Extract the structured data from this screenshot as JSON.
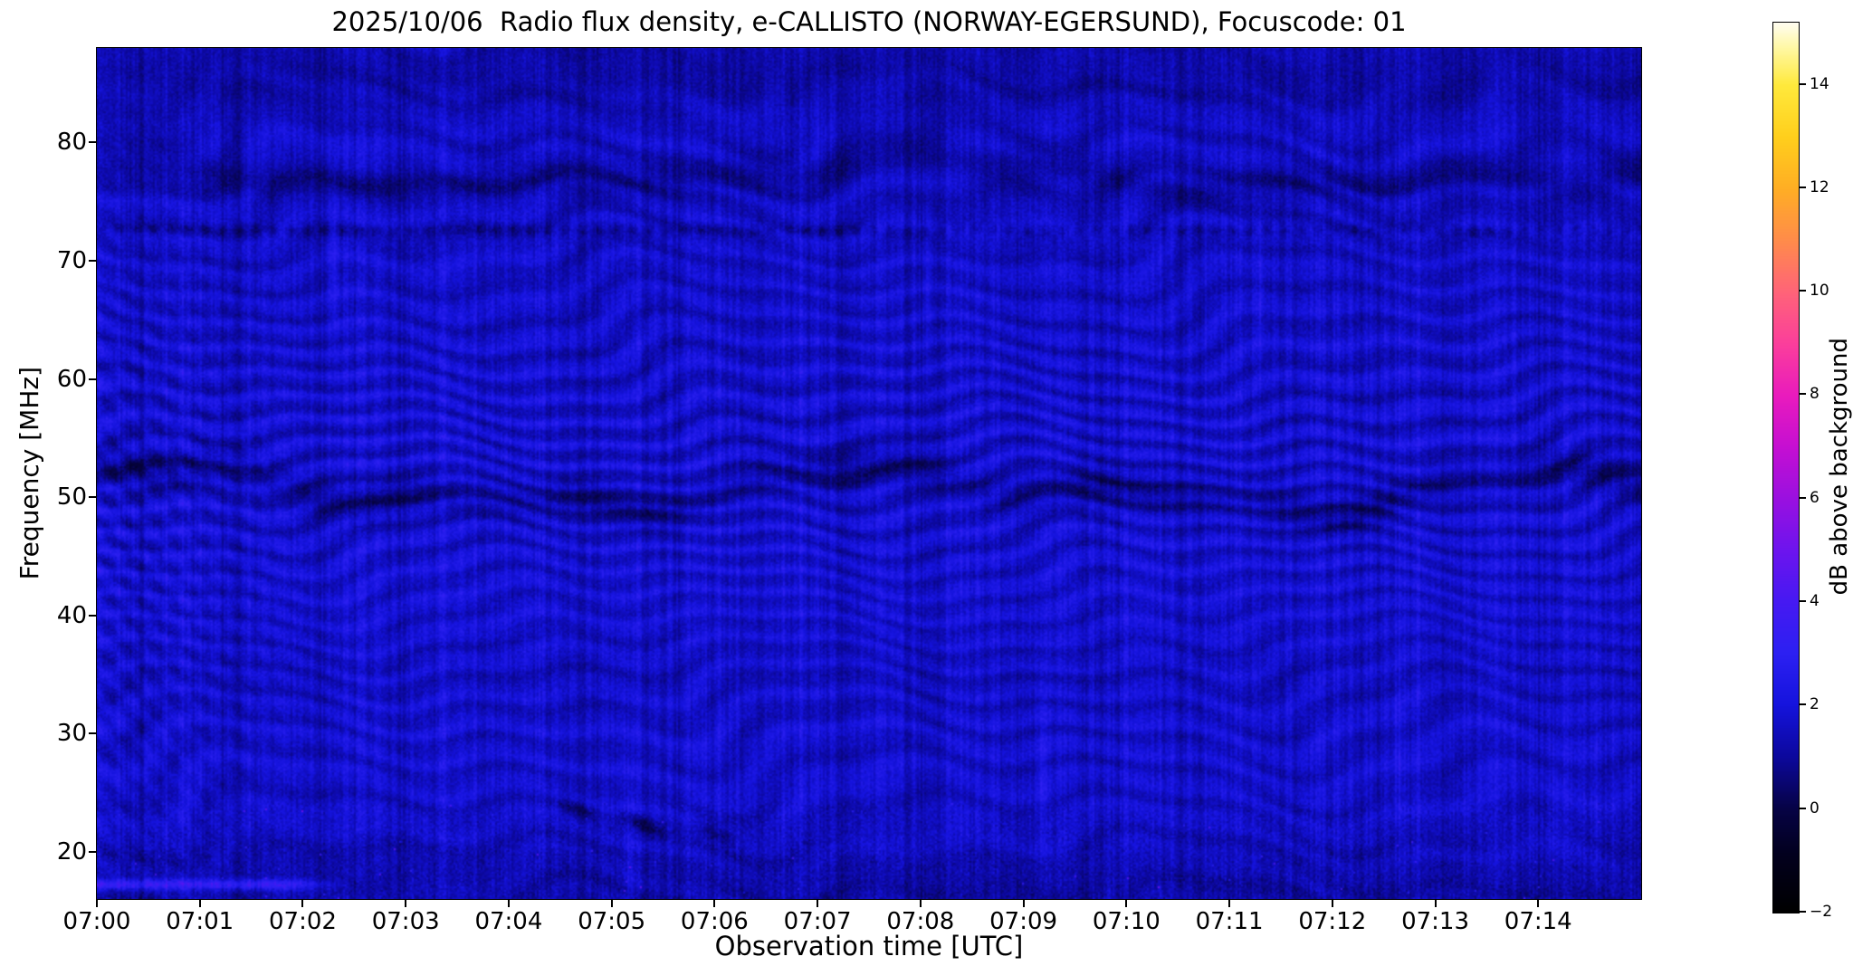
{
  "page": {
    "background_color": "#ffffff",
    "text_color": "#000000",
    "frame_color": "#000000"
  },
  "chart_data": {
    "type": "heatmap",
    "title": "2025/10/06  Radio flux density, e-CALLISTO (NORWAY-EGERSUND), Focuscode: 01",
    "xlabel": "Observation time [UTC]",
    "ylabel": "Frequency [MHz]",
    "x_tick_labels": [
      "07:00",
      "07:01",
      "07:02",
      "07:03",
      "07:04",
      "07:05",
      "07:06",
      "07:07",
      "07:08",
      "07:09",
      "07:10",
      "07:11",
      "07:12",
      "07:13",
      "07:14"
    ],
    "x_tick_minutes": [
      0,
      1,
      2,
      3,
      4,
      5,
      6,
      7,
      8,
      9,
      10,
      11,
      12,
      13,
      14
    ],
    "xlim_minutes": [
      0,
      15
    ],
    "y_ticks_mhz": [
      80,
      70,
      60,
      50,
      40,
      30,
      20
    ],
    "ylim_mhz": [
      16,
      88
    ],
    "grid": false,
    "legend": "none",
    "colorbar": {
      "label": "dB above background",
      "tick_values": [
        14,
        12,
        10,
        8,
        6,
        4,
        2,
        0,
        -2
      ],
      "value_range": [
        -2,
        15.2
      ],
      "colormap_stops": [
        {
          "pos": 0.0,
          "color": "#000000"
        },
        {
          "pos": 0.065,
          "color": "#02001e"
        },
        {
          "pos": 0.116,
          "color": "#060345"
        },
        {
          "pos": 0.175,
          "color": "#0c089d"
        },
        {
          "pos": 0.233,
          "color": "#1513dd"
        },
        {
          "pos": 0.291,
          "color": "#2c20f2"
        },
        {
          "pos": 0.349,
          "color": "#4619f2"
        },
        {
          "pos": 0.407,
          "color": "#6d14ee"
        },
        {
          "pos": 0.465,
          "color": "#9a10e0"
        },
        {
          "pos": 0.523,
          "color": "#c50fd2"
        },
        {
          "pos": 0.581,
          "color": "#e91bbd"
        },
        {
          "pos": 0.64,
          "color": "#fb3f9b"
        },
        {
          "pos": 0.698,
          "color": "#ff6478"
        },
        {
          "pos": 0.756,
          "color": "#ff8c4a"
        },
        {
          "pos": 0.814,
          "color": "#ffae24"
        },
        {
          "pos": 0.872,
          "color": "#ffcf1c"
        },
        {
          "pos": 0.93,
          "color": "#ffe93c"
        },
        {
          "pos": 0.97,
          "color": "#fff79f"
        },
        {
          "pos": 1.0,
          "color": "#fffdf0"
        }
      ]
    },
    "visual_features": [
      "background noise floor around 0 to 2 dB rendered as dark blue",
      "wavy horizontal interference fringes, strongest between about 40 and 60 MHz",
      "dark undulating band near 50 MHz and another near 77 MHz",
      "dotted dark horizontal line near 72.5 MHz",
      "diagonal fringe pattern during roughly the first two minutes (07:00-07:02)",
      "bright narrow emission line near 17 MHz from 07:00 to about 07:02",
      "darker patchy region with short dark diagonal dashes below 24 MHz near 07:04-07:06",
      "scattered faint bright specks below 24 MHz"
    ]
  }
}
